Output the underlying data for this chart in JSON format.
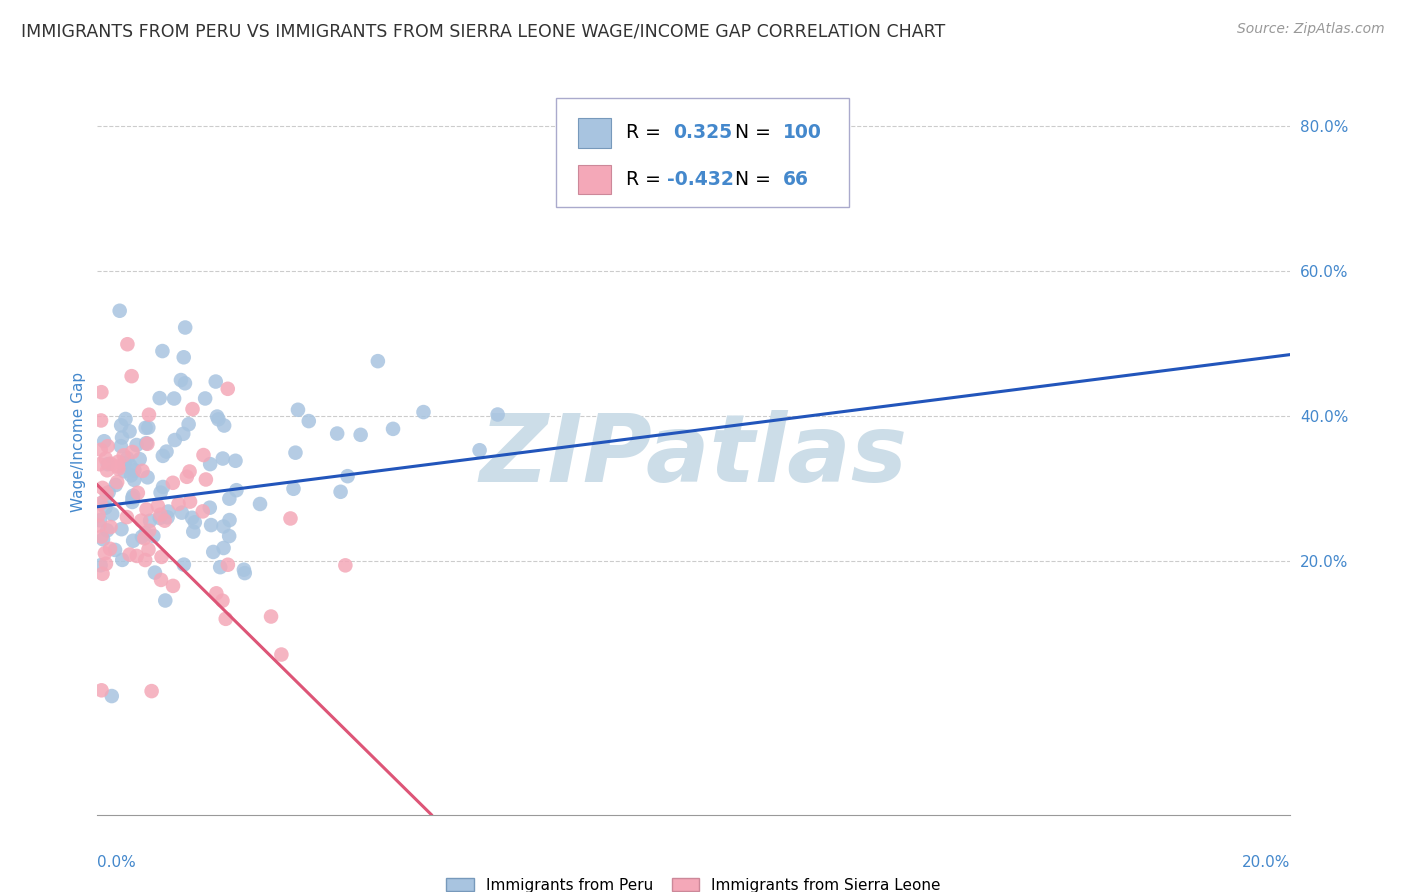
{
  "title": "IMMIGRANTS FROM PERU VS IMMIGRANTS FROM SIERRA LEONE WAGE/INCOME GAP CORRELATION CHART",
  "source": "Source: ZipAtlas.com",
  "ylabel": "Wage/Income Gap",
  "ytick_labels": [
    "20.0%",
    "40.0%",
    "60.0%",
    "80.0%"
  ],
  "ytick_values": [
    0.2,
    0.4,
    0.6,
    0.8
  ],
  "xmin": 0.0,
  "xmax": 0.2,
  "ymin": -0.15,
  "ymax": 0.88,
  "legend1_R": "0.325",
  "legend1_N": "100",
  "legend2_R": "-0.432",
  "legend2_N": "66",
  "color_peru": "#a8c4e0",
  "color_sierra": "#f4a8b8",
  "color_peru_line": "#2255bb",
  "color_sierra_line": "#dd5577",
  "color_title": "#333333",
  "color_axis_label": "#4488cc",
  "color_watermark": "#ccdde8",
  "watermark_text": "ZIPatlas",
  "peru_line_x0": 0.0,
  "peru_line_x1": 0.2,
  "peru_line_y0": 0.275,
  "peru_line_y1": 0.485,
  "sierra_line_x0": 0.0,
  "sierra_line_x1": 0.056,
  "sierra_line_y0": 0.305,
  "sierra_line_y1": -0.15,
  "grid_color": "#cccccc",
  "background_color": "#ffffff"
}
